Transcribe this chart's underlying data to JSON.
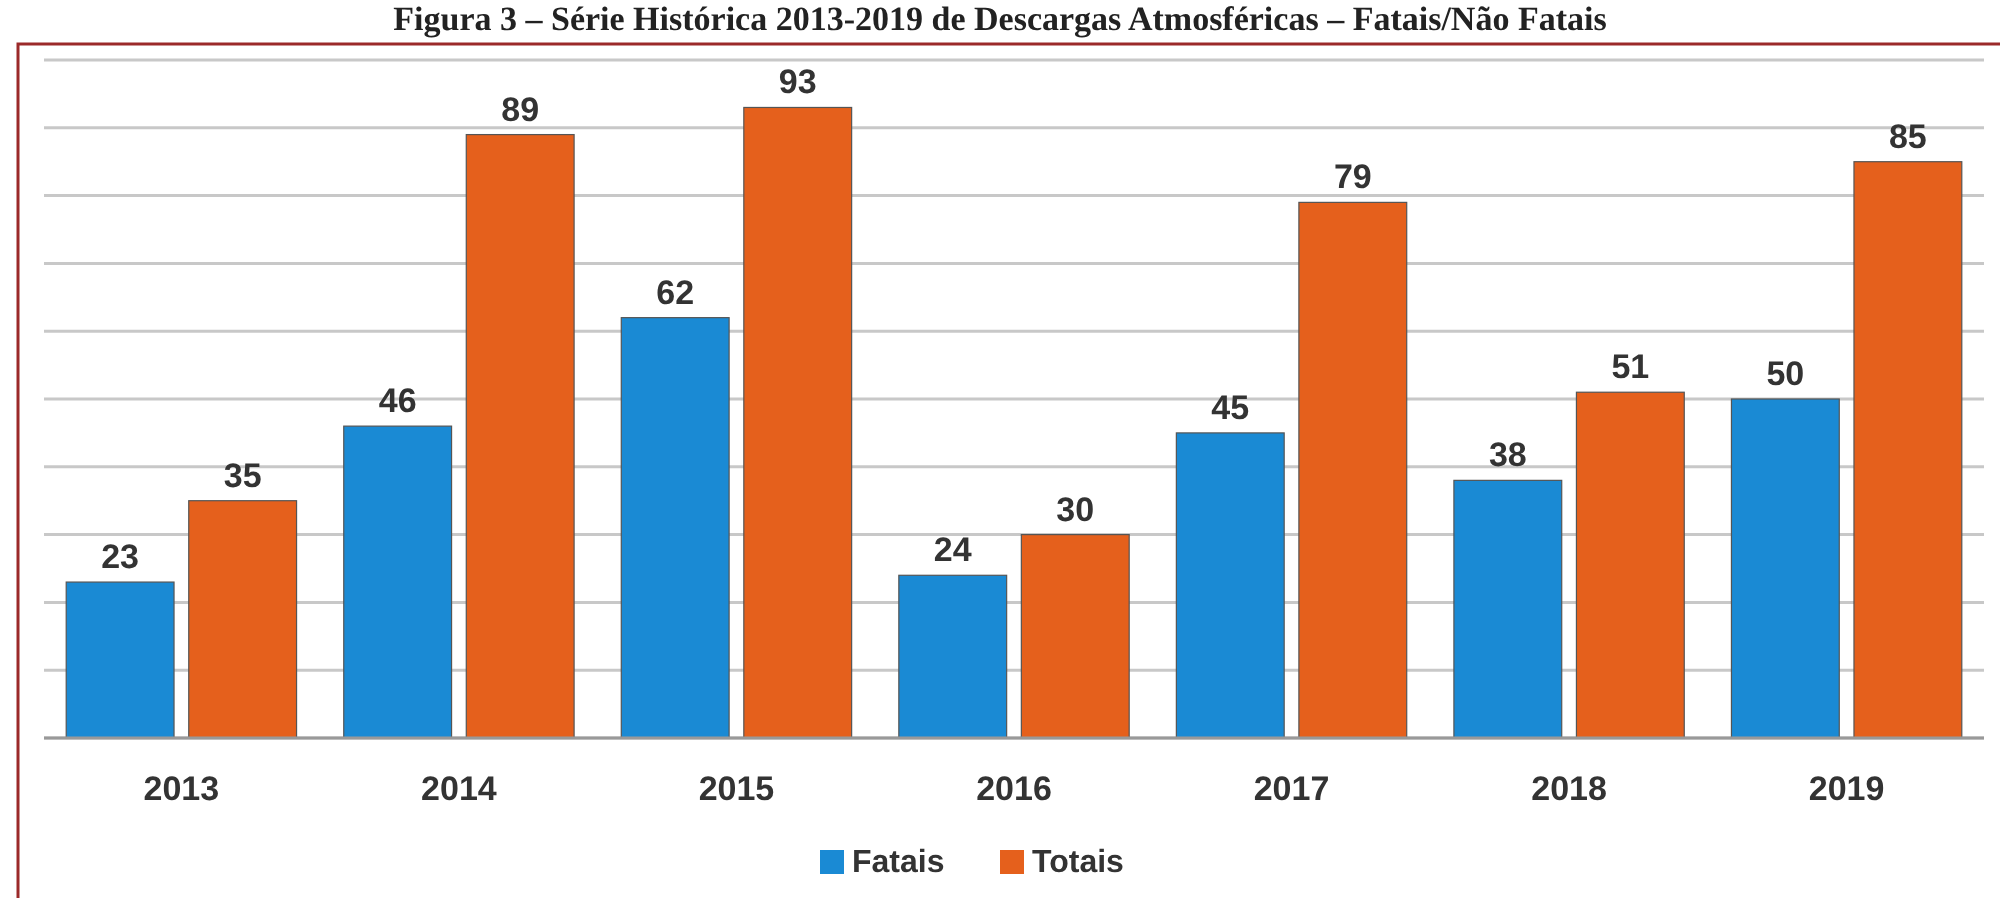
{
  "chart_data": {
    "type": "bar",
    "title": "Figura 3 – Série Histórica 2013-2019 de Descargas Atmosféricas – Fatais/Não Fatais",
    "categories": [
      "2013",
      "2014",
      "2015",
      "2016",
      "2017",
      "2018",
      "2019"
    ],
    "series": [
      {
        "name": "Fatais",
        "color": "#1a8ad4",
        "values": [
          23,
          46,
          62,
          24,
          45,
          38,
          50
        ]
      },
      {
        "name": "Totais",
        "color": "#e5601c",
        "values": [
          35,
          89,
          93,
          30,
          79,
          51,
          85
        ]
      }
    ],
    "ylim": [
      0,
      100
    ],
    "yticks": [
      {
        "value": 0,
        "label": null
      },
      {
        "value": 10,
        "label": null
      },
      {
        "value": 20,
        "label": null
      },
      {
        "value": 30,
        "label": null
      },
      {
        "value": 40,
        "label": null
      },
      {
        "value": 50,
        "label": null
      },
      {
        "value": 60,
        "label": null
      },
      {
        "value": 70,
        "label": null
      },
      {
        "value": 80,
        "label": null
      },
      {
        "value": 90,
        "label": null
      },
      {
        "value": 100,
        "label": null
      }
    ],
    "grid": "y",
    "tick_labels": "x",
    "data_labels": true,
    "legend": "bottom"
  }
}
